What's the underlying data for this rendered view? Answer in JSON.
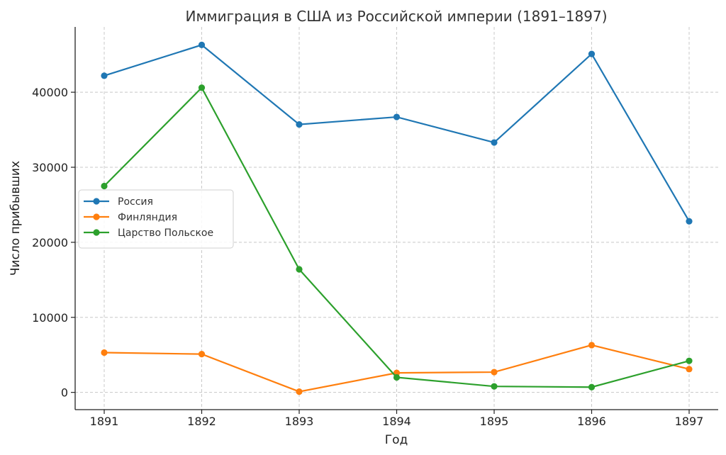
{
  "chart_data": {
    "type": "line",
    "title": "Иммиграция в США из Российской империи (1891–1897)",
    "xlabel": "Год",
    "ylabel": "Число прибывших",
    "x": [
      1891,
      1892,
      1893,
      1894,
      1895,
      1896,
      1897
    ],
    "xticks": [
      "1891",
      "1892",
      "1893",
      "1894",
      "1895",
      "1896",
      "1897"
    ],
    "ylim": [
      -2300,
      48700
    ],
    "yticks": [
      0,
      10000,
      20000,
      30000,
      40000
    ],
    "ytick_labels": [
      "0",
      "10000",
      "20000",
      "30000",
      "40000"
    ],
    "grid": true,
    "legend_position": "center-left",
    "series": [
      {
        "name": "Россия",
        "color": "#1f77b4",
        "values": [
          42200,
          46300,
          35700,
          36700,
          33300,
          45100,
          22800
        ]
      },
      {
        "name": "Финляндия",
        "color": "#ff7f0e",
        "values": [
          5300,
          5100,
          100,
          2600,
          2700,
          6300,
          3100
        ]
      },
      {
        "name": "Царство Польское",
        "color": "#2ca02c",
        "values": [
          27500,
          40600,
          16400,
          2000,
          800,
          700,
          4200
        ]
      }
    ]
  }
}
